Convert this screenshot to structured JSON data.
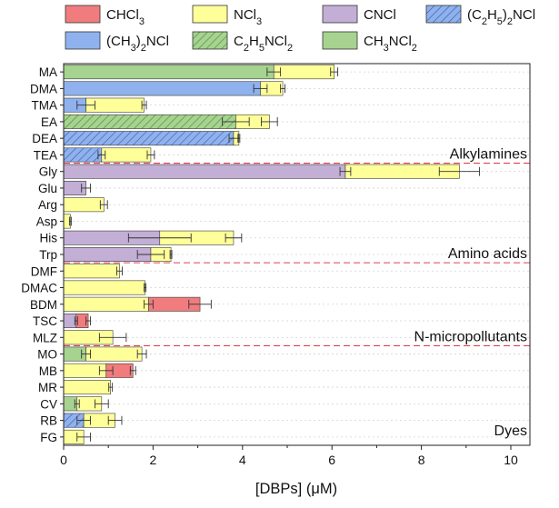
{
  "chart_data": {
    "type": "bar",
    "orientation": "horizontal",
    "stacked": true,
    "xlabel": "[DBPs] (μM)",
    "xlim": [
      0,
      10.5
    ],
    "xticks": [
      0,
      2,
      4,
      6,
      8,
      10
    ],
    "categories": [
      "MA",
      "DMA",
      "TMA",
      "EA",
      "DEA",
      "TEA",
      "Gly",
      "Glu",
      "Arg",
      "Asp",
      "His",
      "Trp",
      "DMF",
      "DMAC",
      "BDM",
      "TSC",
      "MLZ",
      "MO",
      "MB",
      "MR",
      "CV",
      "RB",
      "FG"
    ],
    "legend": {
      "placement": "top",
      "entries": [
        {
          "key": "chcl3",
          "parts": [
            {
              "t": "CHCl"
            },
            {
              "t": "3",
              "sub": true
            }
          ],
          "color": "#f07c7e",
          "hatch": false
        },
        {
          "key": "ncl3",
          "parts": [
            {
              "t": "NCl"
            },
            {
              "t": "3",
              "sub": true
            }
          ],
          "color": "#ffff99",
          "hatch": false
        },
        {
          "key": "cncl",
          "parts": [
            {
              "t": "CNCl"
            }
          ],
          "color": "#c3aed6",
          "hatch": false
        },
        {
          "key": "c2h5_2ncl",
          "parts": [
            {
              "t": "(C"
            },
            {
              "t": "2",
              "sub": true
            },
            {
              "t": "H"
            },
            {
              "t": "5",
              "sub": true
            },
            {
              "t": ")"
            },
            {
              "t": "2",
              "sub": true
            },
            {
              "t": "NCl"
            }
          ],
          "color": "#8fb2ee",
          "hatch": true
        },
        {
          "key": "ch3_2ncl",
          "parts": [
            {
              "t": "(CH"
            },
            {
              "t": "3",
              "sub": true
            },
            {
              "t": ")"
            },
            {
              "t": "2",
              "sub": true
            },
            {
              "t": "NCl"
            }
          ],
          "color": "#8fb2ee",
          "hatch": false
        },
        {
          "key": "c2h5ncl2",
          "parts": [
            {
              "t": "C"
            },
            {
              "t": "2",
              "sub": true
            },
            {
              "t": "H"
            },
            {
              "t": "5",
              "sub": true
            },
            {
              "t": "NCl"
            },
            {
              "t": "2",
              "sub": true
            }
          ],
          "color": "#a6d38f",
          "hatch": true
        },
        {
          "key": "ch3ncl2",
          "parts": [
            {
              "t": "CH"
            },
            {
              "t": "3",
              "sub": true
            },
            {
              "t": "NCl"
            },
            {
              "t": "2",
              "sub": true
            }
          ],
          "color": "#a6d38f",
          "hatch": false
        }
      ]
    },
    "groups": [
      {
        "label": "Alkylamines",
        "after_index": 5
      },
      {
        "label": "Amino acids",
        "after_index": 11
      },
      {
        "label": "N-micropollutants",
        "after_index": 16
      },
      {
        "label": "Dyes",
        "after_index": 22
      }
    ],
    "bars": [
      {
        "category": "MA",
        "segments": [
          {
            "key": "ch3ncl2",
            "value": 4.7,
            "err": 0.15
          },
          {
            "key": "ncl3",
            "value": 1.35,
            "err": 0.08
          }
        ]
      },
      {
        "category": "DMA",
        "segments": [
          {
            "key": "ch3_2ncl",
            "value": 4.4,
            "err": 0.15
          },
          {
            "key": "ncl3",
            "value": 0.5,
            "err": 0.05
          }
        ]
      },
      {
        "category": "TMA",
        "segments": [
          {
            "key": "ch3_2ncl",
            "value": 0.5,
            "err": 0.2
          },
          {
            "key": "ncl3",
            "value": 1.3,
            "err": 0.05
          }
        ]
      },
      {
        "category": "EA",
        "segments": [
          {
            "key": "c2h5ncl2",
            "value": 3.85,
            "err": 0.3
          },
          {
            "key": "ncl3",
            "value": 0.75,
            "err": 0.18
          }
        ]
      },
      {
        "category": "DEA",
        "segments": [
          {
            "key": "c2h5_2ncl",
            "value": 3.8,
            "err": 0.1
          },
          {
            "key": "ncl3",
            "value": 0.12,
            "err": 0.02
          }
        ]
      },
      {
        "category": "TEA",
        "segments": [
          {
            "key": "c2h5_2ncl",
            "value": 0.85,
            "err": 0.08
          },
          {
            "key": "ncl3",
            "value": 1.1,
            "err": 0.08
          }
        ]
      },
      {
        "category": "Gly",
        "segments": [
          {
            "key": "cncl",
            "value": 6.3,
            "err": 0.12
          },
          {
            "key": "ncl3",
            "value": 2.55,
            "err": 0.45
          }
        ]
      },
      {
        "category": "Glu",
        "segments": [
          {
            "key": "cncl",
            "value": 0.5,
            "err": 0.1
          }
        ]
      },
      {
        "category": "Arg",
        "segments": [
          {
            "key": "ncl3",
            "value": 0.9,
            "err": 0.08
          }
        ]
      },
      {
        "category": "Asp",
        "segments": [
          {
            "key": "ncl3",
            "value": 0.15,
            "err": 0.02
          }
        ]
      },
      {
        "category": "His",
        "segments": [
          {
            "key": "cncl",
            "value": 2.15,
            "err": 0.7
          },
          {
            "key": "ncl3",
            "value": 1.65,
            "err": 0.18
          }
        ]
      },
      {
        "category": "Trp",
        "segments": [
          {
            "key": "cncl",
            "value": 1.95,
            "err": 0.3
          },
          {
            "key": "ncl3",
            "value": 0.45,
            "err": 0.02
          }
        ]
      },
      {
        "category": "DMF",
        "segments": [
          {
            "key": "ncl3",
            "value": 1.25,
            "err": 0.06
          }
        ]
      },
      {
        "category": "DMAC",
        "segments": [
          {
            "key": "ncl3",
            "value": 1.82,
            "err": 0.02
          }
        ]
      },
      {
        "category": "BDM",
        "segments": [
          {
            "key": "ncl3",
            "value": 1.9,
            "err": 0.1
          },
          {
            "key": "chcl3",
            "value": 1.15,
            "err": 0.25
          }
        ]
      },
      {
        "category": "TSC",
        "segments": [
          {
            "key": "cncl",
            "value": 0.28,
            "err": 0.03
          },
          {
            "key": "chcl3",
            "value": 0.27,
            "err": 0.05
          }
        ]
      },
      {
        "category": "MLZ",
        "segments": [
          {
            "key": "ncl3",
            "value": 1.1,
            "err": 0.3
          }
        ]
      },
      {
        "category": "MO",
        "segments": [
          {
            "key": "ch3ncl2",
            "value": 0.5,
            "err": 0.1
          },
          {
            "key": "ncl3",
            "value": 1.25,
            "err": 0.1
          }
        ]
      },
      {
        "category": "MB",
        "segments": [
          {
            "key": "ncl3",
            "value": 0.95,
            "err": 0.15
          },
          {
            "key": "chcl3",
            "value": 0.6,
            "err": 0.06
          }
        ]
      },
      {
        "category": "MR",
        "segments": [
          {
            "key": "ncl3",
            "value": 1.05,
            "err": 0.04
          }
        ]
      },
      {
        "category": "CV",
        "segments": [
          {
            "key": "ch3ncl2",
            "value": 0.3,
            "err": 0.05
          },
          {
            "key": "ncl3",
            "value": 0.55,
            "err": 0.15
          }
        ]
      },
      {
        "category": "RB",
        "segments": [
          {
            "key": "c2h5_2ncl",
            "value": 0.45,
            "err": 0.15
          },
          {
            "key": "ncl3",
            "value": 0.7,
            "err": 0.15
          }
        ]
      },
      {
        "category": "FG",
        "segments": [
          {
            "key": "ncl3",
            "value": 0.45,
            "err": 0.15
          }
        ]
      }
    ]
  }
}
